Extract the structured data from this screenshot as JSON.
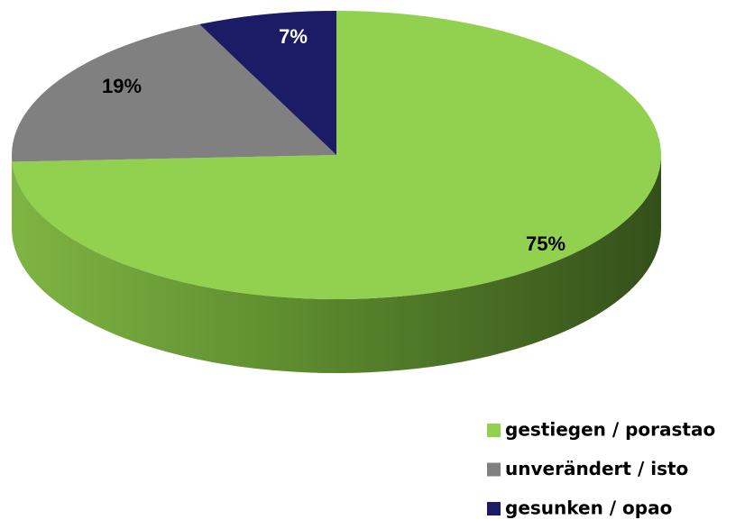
{
  "chart_data": {
    "type": "pie",
    "categories": [
      "gestiegen / porastao",
      "unverändert / isto",
      "gesunken / opao"
    ],
    "values": [
      75,
      19,
      7
    ],
    "value_labels": [
      "75%",
      "19%",
      "7%"
    ],
    "colors": [
      "#92d050",
      "#808080",
      "#1c1c66"
    ],
    "legend": "bottom-right"
  }
}
